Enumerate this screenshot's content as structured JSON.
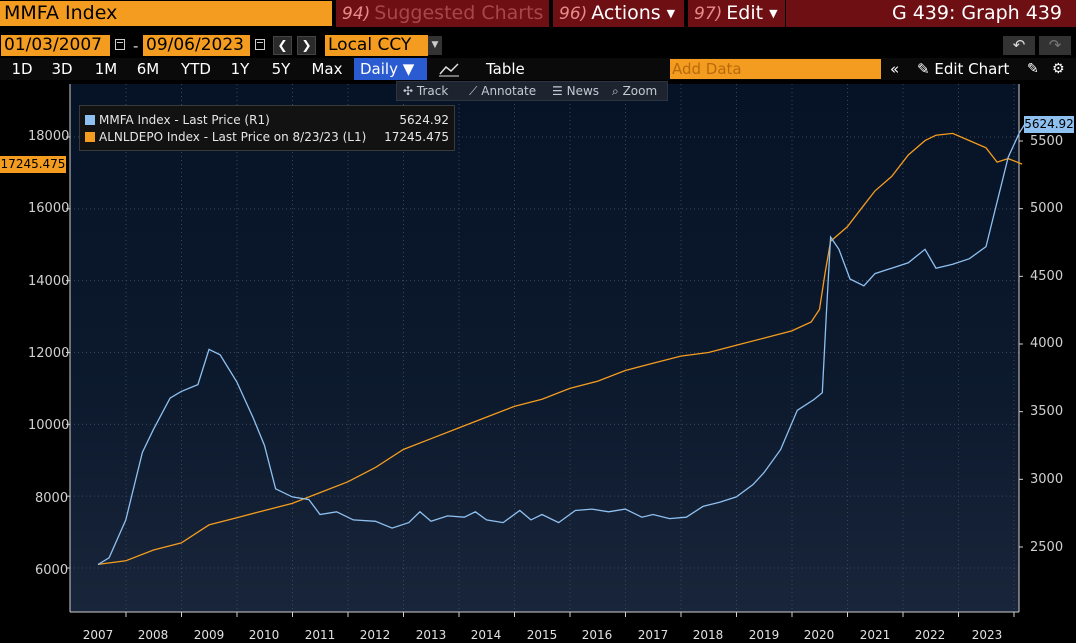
{
  "header": {
    "ticker": "MMFA Index",
    "suggested": {
      "num": "94)",
      "label": "Suggested Charts"
    },
    "actions": {
      "num": "96)",
      "label": "Actions"
    },
    "edit": {
      "num": "97)",
      "label": "Edit"
    },
    "graph_title": "G 439: Graph 439"
  },
  "controls": {
    "start_date": "01/03/2007",
    "end_date": "09/06/2023",
    "date_sep": "-",
    "currency": "Local CCY",
    "timeframes": [
      "1D",
      "3D",
      "1M",
      "6M",
      "YTD",
      "1Y",
      "5Y",
      "Max"
    ],
    "frequency": "Daily",
    "table_label": "Table",
    "add_data_placeholder": "Add Data",
    "edit_chart": "Edit Chart"
  },
  "toolbar": {
    "track": "Track",
    "annotate": "Annotate",
    "news": "News",
    "zoom": "Zoom"
  },
  "legend": {
    "series1_label": "MMFA Index - Last Price (R1)",
    "series1_value": "5624.92",
    "series2_label": "ALNLDEPO Index - Last Price on 8/23/23 (L1)",
    "series2_value": "17245.475"
  },
  "tags": {
    "right_last": "5624.92",
    "left_last": "17245.475"
  },
  "colors": {
    "mmfa": "#8ec0f0",
    "alnldepo": "#f39c1f",
    "accent": "#f39c1f",
    "header_red": "#6e0f14"
  },
  "chart_data": {
    "type": "line",
    "x_label_years": [
      "2007",
      "2008",
      "2009",
      "2010",
      "2011",
      "2012",
      "2013",
      "2014",
      "2015",
      "2016",
      "2017",
      "2018",
      "2019",
      "2020",
      "2021",
      "2022",
      "2023"
    ],
    "left_axis": {
      "ticks": [
        "6000",
        "8000",
        "10000",
        "12000",
        "14000",
        "16000",
        "18000"
      ],
      "range": [
        5500,
        19000
      ]
    },
    "right_axis": {
      "ticks": [
        "2500",
        "3000",
        "3500",
        "4000",
        "4500",
        "5000",
        "5500"
      ],
      "range": [
        2100,
        6000
      ]
    },
    "series": [
      {
        "name": "MMFA Index - Last Price (R1)",
        "axis": "right",
        "points": [
          [
            2007.0,
            2370
          ],
          [
            2007.2,
            2420
          ],
          [
            2007.5,
            2700
          ],
          [
            2007.8,
            3200
          ],
          [
            2008.0,
            3370
          ],
          [
            2008.3,
            3600
          ],
          [
            2008.5,
            3650
          ],
          [
            2008.8,
            3700
          ],
          [
            2009.0,
            3960
          ],
          [
            2009.2,
            3920
          ],
          [
            2009.5,
            3720
          ],
          [
            2009.8,
            3450
          ],
          [
            2010.0,
            3250
          ],
          [
            2010.2,
            2930
          ],
          [
            2010.5,
            2870
          ],
          [
            2010.8,
            2850
          ],
          [
            2011.0,
            2740
          ],
          [
            2011.3,
            2760
          ],
          [
            2011.6,
            2700
          ],
          [
            2012.0,
            2690
          ],
          [
            2012.3,
            2640
          ],
          [
            2012.6,
            2680
          ],
          [
            2012.8,
            2760
          ],
          [
            2013.0,
            2690
          ],
          [
            2013.3,
            2730
          ],
          [
            2013.6,
            2720
          ],
          [
            2013.8,
            2760
          ],
          [
            2014.0,
            2700
          ],
          [
            2014.3,
            2680
          ],
          [
            2014.6,
            2770
          ],
          [
            2014.8,
            2700
          ],
          [
            2015.0,
            2740
          ],
          [
            2015.3,
            2680
          ],
          [
            2015.6,
            2770
          ],
          [
            2015.9,
            2780
          ],
          [
            2016.2,
            2760
          ],
          [
            2016.5,
            2780
          ],
          [
            2016.8,
            2720
          ],
          [
            2017.0,
            2740
          ],
          [
            2017.3,
            2710
          ],
          [
            2017.6,
            2720
          ],
          [
            2017.9,
            2800
          ],
          [
            2018.2,
            2830
          ],
          [
            2018.5,
            2870
          ],
          [
            2018.8,
            2960
          ],
          [
            2019.0,
            3050
          ],
          [
            2019.3,
            3220
          ],
          [
            2019.6,
            3510
          ],
          [
            2019.9,
            3590
          ],
          [
            2020.05,
            3640
          ],
          [
            2020.12,
            4200
          ],
          [
            2020.2,
            4790
          ],
          [
            2020.35,
            4700
          ],
          [
            2020.55,
            4480
          ],
          [
            2020.8,
            4430
          ],
          [
            2021.0,
            4520
          ],
          [
            2021.3,
            4560
          ],
          [
            2021.6,
            4600
          ],
          [
            2021.9,
            4700
          ],
          [
            2022.1,
            4560
          ],
          [
            2022.4,
            4590
          ],
          [
            2022.7,
            4630
          ],
          [
            2023.0,
            4720
          ],
          [
            2023.2,
            5050
          ],
          [
            2023.4,
            5380
          ],
          [
            2023.6,
            5560
          ],
          [
            2023.7,
            5625
          ]
        ]
      },
      {
        "name": "ALNLDEPO Index - Last Price on 8/23/23 (L1)",
        "axis": "left",
        "points": [
          [
            2007.0,
            6100
          ],
          [
            2007.5,
            6200
          ],
          [
            2008.0,
            6500
          ],
          [
            2008.5,
            6700
          ],
          [
            2009.0,
            7200
          ],
          [
            2009.5,
            7400
          ],
          [
            2010.0,
            7600
          ],
          [
            2010.5,
            7800
          ],
          [
            2011.0,
            8100
          ],
          [
            2011.5,
            8400
          ],
          [
            2012.0,
            8800
          ],
          [
            2012.5,
            9300
          ],
          [
            2013.0,
            9600
          ],
          [
            2013.5,
            9900
          ],
          [
            2014.0,
            10200
          ],
          [
            2014.5,
            10500
          ],
          [
            2015.0,
            10700
          ],
          [
            2015.5,
            11000
          ],
          [
            2016.0,
            11200
          ],
          [
            2016.5,
            11500
          ],
          [
            2017.0,
            11700
          ],
          [
            2017.5,
            11900
          ],
          [
            2018.0,
            12000
          ],
          [
            2018.5,
            12200
          ],
          [
            2019.0,
            12400
          ],
          [
            2019.5,
            12600
          ],
          [
            2019.85,
            12850
          ],
          [
            2020.0,
            13200
          ],
          [
            2020.1,
            14200
          ],
          [
            2020.2,
            15100
          ],
          [
            2020.5,
            15500
          ],
          [
            2020.8,
            16100
          ],
          [
            2021.0,
            16500
          ],
          [
            2021.3,
            16900
          ],
          [
            2021.6,
            17500
          ],
          [
            2021.9,
            17900
          ],
          [
            2022.1,
            18050
          ],
          [
            2022.4,
            18100
          ],
          [
            2022.7,
            17900
          ],
          [
            2023.0,
            17700
          ],
          [
            2023.2,
            17300
          ],
          [
            2023.4,
            17400
          ],
          [
            2023.65,
            17245
          ]
        ]
      }
    ]
  }
}
